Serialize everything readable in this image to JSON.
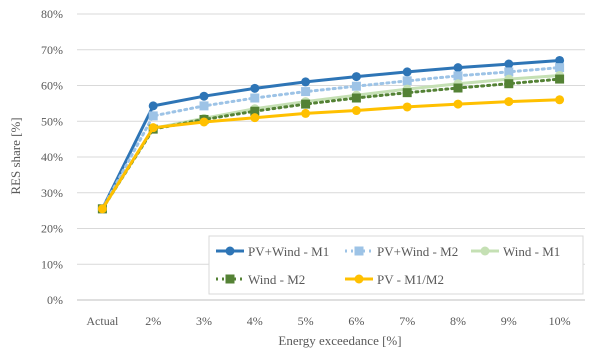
{
  "chart_data": {
    "type": "line",
    "xlabel": "Energy exceedance [%]",
    "ylabel": "RES share [%]",
    "categories": [
      "Actual",
      "2%",
      "3%",
      "4%",
      "5%",
      "6%",
      "7%",
      "8%",
      "9%",
      "10%"
    ],
    "ylim": [
      0,
      80
    ],
    "y_ticks": [
      0,
      10,
      20,
      30,
      40,
      50,
      60,
      70,
      80
    ],
    "y_tick_labels": [
      "0%",
      "10%",
      "20%",
      "30%",
      "40%",
      "50%",
      "60%",
      "70%",
      "80%"
    ],
    "grid": "horizontal",
    "legend_position": "bottom-right",
    "series": [
      {
        "name": "PV+Wind - M1",
        "values": [
          25.5,
          54.3,
          57.0,
          59.2,
          61.0,
          62.5,
          63.8,
          65.0,
          66.0,
          67.0
        ],
        "color": "#2E75B6",
        "dash": "solid",
        "marker": "circle"
      },
      {
        "name": "PV+Wind - M2",
        "values": [
          25.5,
          51.5,
          54.3,
          56.5,
          58.3,
          59.8,
          61.3,
          62.7,
          63.8,
          65.0
        ],
        "color": "#9DC3E6",
        "dash": "dotted",
        "marker": "square"
      },
      {
        "name": "Wind - M1",
        "values": [
          25.5,
          48.0,
          50.8,
          53.5,
          55.5,
          57.3,
          59.0,
          60.5,
          61.8,
          62.8
        ],
        "color": "#C5E0B4",
        "dash": "solid",
        "marker": "circle"
      },
      {
        "name": "Wind - M2",
        "values": [
          25.5,
          47.8,
          50.5,
          52.8,
          54.8,
          56.5,
          58.0,
          59.3,
          60.5,
          61.8
        ],
        "color": "#548235",
        "dash": "dotted",
        "marker": "square"
      },
      {
        "name": "PV - M1/M2",
        "values": [
          25.5,
          48.2,
          49.8,
          51.0,
          52.2,
          53.0,
          54.0,
          54.8,
          55.5,
          56.0
        ],
        "color": "#FFC000",
        "dash": "solid",
        "marker": "circle"
      }
    ]
  }
}
